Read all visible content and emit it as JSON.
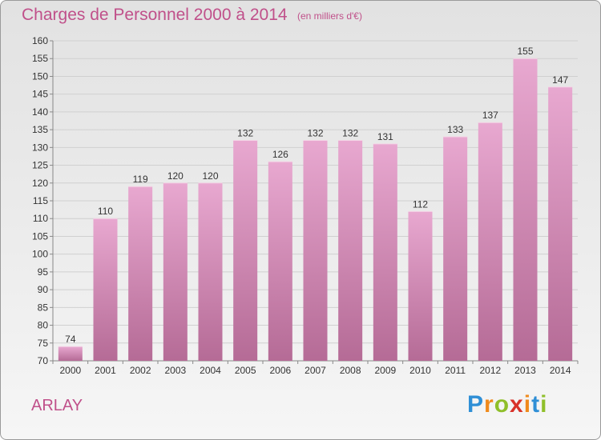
{
  "chart_data": {
    "type": "bar",
    "title": "Charges de Personnel 2000 à 2014",
    "subtitle": "(en milliers d'€)",
    "categories": [
      "2000",
      "2001",
      "2002",
      "2003",
      "2004",
      "2005",
      "2006",
      "2007",
      "2008",
      "2009",
      "2010",
      "2011",
      "2012",
      "2013",
      "2014"
    ],
    "values": [
      74,
      110,
      119,
      120,
      120,
      132,
      126,
      132,
      132,
      131,
      112,
      133,
      137,
      155,
      147
    ],
    "ylim": [
      70,
      160
    ],
    "yticks": [
      70,
      75,
      80,
      85,
      90,
      95,
      100,
      105,
      110,
      115,
      120,
      125,
      130,
      135,
      140,
      145,
      150,
      155,
      160
    ],
    "grid": true,
    "bar_color_top": "#e8a8d0",
    "bar_color_bottom": "#b56b96"
  },
  "footer": {
    "commune": "ARLAY",
    "logo_text": "Proxiti"
  }
}
